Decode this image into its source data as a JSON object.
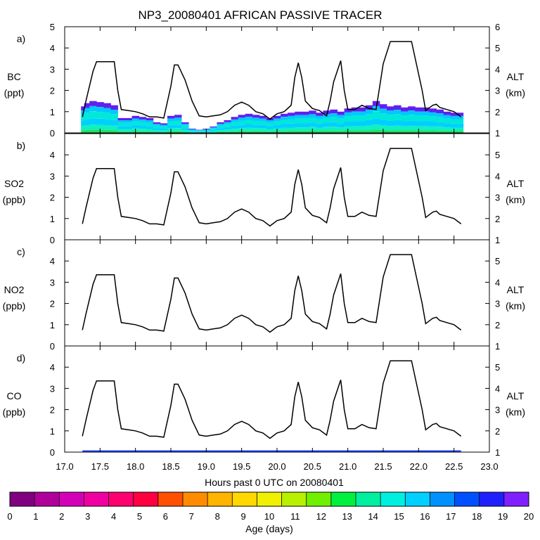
{
  "title": "NP3_20080401 AFRICAN PASSIVE TRACER",
  "x_axis": {
    "label": "Hours past 0 UTC on 20080401",
    "min": 17.0,
    "max": 23.0,
    "ticks": [
      "17.0",
      "17.5",
      "18.0",
      "18.5",
      "19.0",
      "19.5",
      "20.0",
      "20.5",
      "21.0",
      "21.5",
      "22.0",
      "22.5",
      "23.0"
    ]
  },
  "colorbar": {
    "label": "Age (days)",
    "ticks": [
      "0",
      "1",
      "2",
      "3",
      "4",
      "5",
      "6",
      "7",
      "8",
      "9",
      "10",
      "11",
      "12",
      "13",
      "14",
      "15",
      "16",
      "17",
      "18",
      "19",
      "20"
    ],
    "colors": [
      "#800080",
      "#b0009c",
      "#d400b8",
      "#f000a0",
      "#ff0070",
      "#ff0040",
      "#ff5000",
      "#ff8c00",
      "#ffb400",
      "#ffd800",
      "#f0f000",
      "#b8f000",
      "#70f000",
      "#00f040",
      "#00f0a0",
      "#00f0e0",
      "#00d0ff",
      "#0090ff",
      "#0050ff",
      "#2020ff",
      "#8020ff"
    ]
  },
  "chart_data": [
    {
      "type": "area",
      "panel": "a)",
      "ylabel": "BC",
      "yunit": "(ppt)",
      "ylim": [
        0,
        5
      ],
      "yticks": [
        "0",
        "1",
        "2",
        "3",
        "4",
        "5"
      ],
      "y2label": "ALT",
      "y2unit": "(km)",
      "y2lim": [
        1,
        6
      ],
      "y2ticks": [
        "1",
        "2",
        "3",
        "4",
        "5",
        "6"
      ],
      "series": [
        {
          "name": "BC total (ppt)",
          "x": [
            17.25,
            17.3,
            17.4,
            17.5,
            17.6,
            17.7,
            17.8,
            17.9,
            18.0,
            18.1,
            18.2,
            18.3,
            18.4,
            18.5,
            18.6,
            18.7,
            18.8,
            18.9,
            19.0,
            19.1,
            19.2,
            19.3,
            19.4,
            19.5,
            19.6,
            19.7,
            19.8,
            19.9,
            20.0,
            20.1,
            20.2,
            20.3,
            20.4,
            20.5,
            20.6,
            20.7,
            20.8,
            20.9,
            21.0,
            21.1,
            21.2,
            21.3,
            21.4,
            21.5,
            21.6,
            21.7,
            21.8,
            21.9,
            22.0,
            22.1,
            22.2,
            22.3,
            22.4,
            22.5,
            22.6
          ],
          "values": [
            1.25,
            1.4,
            1.5,
            1.45,
            1.4,
            1.3,
            0.7,
            0.7,
            0.8,
            0.75,
            0.7,
            0.5,
            0.45,
            0.8,
            0.85,
            0.5,
            0.2,
            0.15,
            0.2,
            0.3,
            0.5,
            0.6,
            0.75,
            0.85,
            0.9,
            0.85,
            0.8,
            0.7,
            0.8,
            0.9,
            0.95,
            1.0,
            1.0,
            1.05,
            0.95,
            1.05,
            1.1,
            1.0,
            1.15,
            1.2,
            1.2,
            1.3,
            1.5,
            1.35,
            1.25,
            1.3,
            1.2,
            1.25,
            1.2,
            1.2,
            1.15,
            1.1,
            1.0,
            0.95,
            0.95
          ]
        },
        {
          "name": "ALT (km)",
          "x": [
            17.25,
            17.3,
            17.4,
            17.45,
            17.7,
            17.75,
            17.8,
            17.9,
            18.0,
            18.1,
            18.2,
            18.3,
            18.4,
            18.5,
            18.55,
            18.6,
            18.7,
            18.8,
            18.9,
            19.0,
            19.1,
            19.2,
            19.3,
            19.4,
            19.5,
            19.6,
            19.7,
            19.8,
            19.9,
            20.0,
            20.1,
            20.2,
            20.25,
            20.3,
            20.35,
            20.4,
            20.5,
            20.6,
            20.7,
            20.75,
            20.8,
            20.9,
            20.95,
            21.0,
            21.1,
            21.2,
            21.3,
            21.4,
            21.5,
            21.6,
            21.7,
            21.9,
            22.05,
            22.1,
            22.2,
            22.25,
            22.3,
            22.4,
            22.5,
            22.6
          ],
          "values": [
            1.75,
            2.5,
            3.9,
            4.35,
            4.35,
            3.0,
            2.1,
            2.05,
            2.0,
            1.9,
            1.75,
            1.75,
            1.7,
            3.2,
            4.2,
            4.2,
            3.5,
            2.5,
            1.8,
            1.75,
            1.8,
            1.85,
            2.0,
            2.3,
            2.45,
            2.3,
            2.0,
            1.9,
            1.65,
            1.9,
            2.0,
            2.3,
            3.6,
            4.3,
            3.6,
            2.5,
            2.15,
            2.05,
            1.8,
            2.5,
            3.4,
            4.4,
            3.0,
            2.1,
            2.1,
            2.3,
            2.15,
            2.1,
            4.25,
            5.3,
            5.3,
            5.3,
            3.0,
            2.05,
            2.3,
            2.35,
            2.2,
            2.1,
            2.0,
            1.75
          ]
        }
      ]
    },
    {
      "type": "line",
      "panel": "b)",
      "ylabel": "SO2",
      "yunit": "(ppb)",
      "ylim": [
        0,
        5
      ],
      "yticks": [
        "0",
        "1",
        "2",
        "3",
        "4"
      ],
      "y2label": "ALT",
      "y2unit": "(km)",
      "y2lim": [
        1,
        6
      ],
      "y2ticks": [
        "1",
        "2",
        "3",
        "4",
        "5"
      ],
      "series": [
        {
          "name": "ALT (km)",
          "ref": "a"
        }
      ]
    },
    {
      "type": "line",
      "panel": "c)",
      "ylabel": "NO2",
      "yunit": "(ppb)",
      "ylim": [
        0,
        5
      ],
      "yticks": [
        "0",
        "1",
        "2",
        "3",
        "4"
      ],
      "y2label": "ALT",
      "y2unit": "(km)",
      "y2lim": [
        1,
        6
      ],
      "y2ticks": [
        "1",
        "2",
        "3",
        "4",
        "5"
      ],
      "series": [
        {
          "name": "ALT (km)",
          "ref": "a"
        }
      ]
    },
    {
      "type": "line",
      "panel": "d)",
      "ylabel": "CO",
      "yunit": "(ppb)",
      "ylim": [
        0,
        5
      ],
      "yticks": [
        "0",
        "1",
        "2",
        "3",
        "4"
      ],
      "y2label": "ALT",
      "y2unit": "(km)",
      "y2lim": [
        1,
        6
      ],
      "y2ticks": [
        "1",
        "2",
        "3",
        "4",
        "5"
      ],
      "series": [
        {
          "name": "ALT (km)",
          "ref": "a"
        },
        {
          "name": "CO (ppb)",
          "x": [
            17.25,
            22.6
          ],
          "values": [
            0.05,
            0.05
          ]
        }
      ]
    }
  ]
}
